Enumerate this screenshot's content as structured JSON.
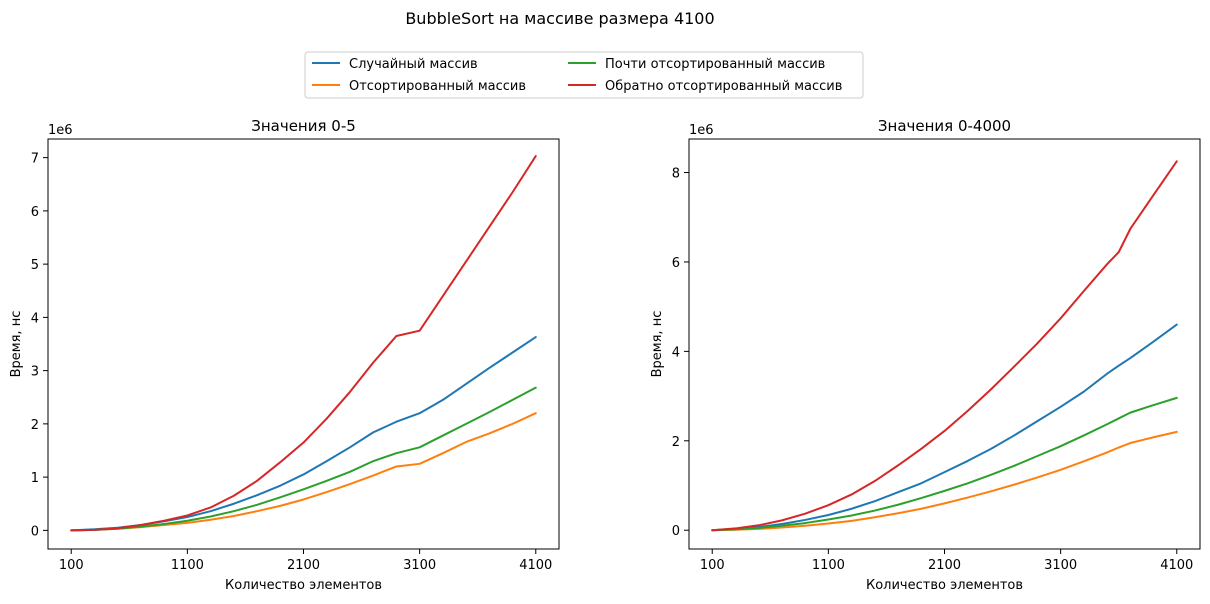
{
  "suptitle": "BubbleSort на массиве размера 4100",
  "legend": [
    {
      "label": "Случайный массив",
      "color": "#1f77b4"
    },
    {
      "label": "Отсортированный массив",
      "color": "#ff7f0e"
    },
    {
      "label": "Почти отсортированный массив",
      "color": "#2ca02c"
    },
    {
      "label": "Обратно отсортированный массив",
      "color": "#d62728"
    }
  ],
  "chart_data": [
    {
      "type": "line",
      "title": "Значения 0-5",
      "xlabel": "Количество элементов",
      "ylabel": "Время, нс",
      "y_offset_label": "1e6",
      "x": [
        100,
        300,
        500,
        700,
        900,
        1100,
        1300,
        1500,
        1700,
        1900,
        2100,
        2300,
        2500,
        2700,
        2900,
        3100,
        3300,
        3500,
        3700,
        3900,
        4100
      ],
      "xticks": [
        100,
        1100,
        2100,
        3100,
        4100
      ],
      "yticks": [
        0,
        1,
        2,
        3,
        4,
        5,
        6,
        7
      ],
      "xlim": [
        -100,
        4300
      ],
      "ylim": [
        -0.35,
        7.35
      ],
      "series": [
        {
          "name": "Случайный массив",
          "color": "#1f77b4",
          "values": [
            0.0,
            0.02,
            0.05,
            0.1,
            0.17,
            0.25,
            0.36,
            0.5,
            0.66,
            0.84,
            1.05,
            1.3,
            1.56,
            1.84,
            2.04,
            2.2,
            2.45,
            2.75,
            3.05,
            3.34,
            3.63
          ]
        },
        {
          "name": "Отсортированный массив",
          "color": "#ff7f0e",
          "values": [
            0.0,
            0.01,
            0.03,
            0.06,
            0.1,
            0.14,
            0.2,
            0.27,
            0.36,
            0.46,
            0.58,
            0.72,
            0.87,
            1.03,
            1.2,
            1.25,
            1.45,
            1.66,
            1.82,
            2.0,
            2.2
          ]
        },
        {
          "name": "Почти отсортированный массив",
          "color": "#2ca02c",
          "values": [
            0.0,
            0.01,
            0.03,
            0.07,
            0.12,
            0.18,
            0.26,
            0.36,
            0.48,
            0.62,
            0.77,
            0.93,
            1.1,
            1.3,
            1.45,
            1.56,
            1.78,
            2.0,
            2.22,
            2.45,
            2.68
          ]
        },
        {
          "name": "Обратно отсортированный массив",
          "color": "#d62728",
          "values": [
            0.0,
            0.01,
            0.04,
            0.1,
            0.18,
            0.28,
            0.43,
            0.65,
            0.93,
            1.28,
            1.65,
            2.1,
            2.6,
            3.15,
            3.65,
            3.75,
            4.4,
            5.05,
            5.7,
            6.35,
            7.03
          ]
        }
      ]
    },
    {
      "type": "line",
      "title": "Значения 0-4000",
      "xlabel": "Количество элементов",
      "ylabel": "Время, нс",
      "y_offset_label": "1e6",
      "x": [
        100,
        300,
        500,
        700,
        900,
        1100,
        1300,
        1500,
        1700,
        1900,
        2100,
        2300,
        2500,
        2700,
        2900,
        3100,
        3300,
        3500,
        3600,
        3700,
        3900,
        4100
      ],
      "xticks": [
        100,
        1100,
        2100,
        3100,
        4100
      ],
      "yticks": [
        0,
        2,
        4,
        6,
        8
      ],
      "xlim": [
        -100,
        4300
      ],
      "ylim": [
        -0.42,
        8.75
      ],
      "series": [
        {
          "name": "Случайный массив",
          "color": "#1f77b4",
          "values": [
            0.0,
            0.03,
            0.07,
            0.14,
            0.23,
            0.34,
            0.48,
            0.65,
            0.85,
            1.05,
            1.3,
            1.55,
            1.82,
            2.12,
            2.44,
            2.76,
            3.1,
            3.5,
            3.68,
            3.85,
            4.22,
            4.6
          ]
        },
        {
          "name": "Отсортированный массив",
          "color": "#ff7f0e",
          "values": [
            0.0,
            0.01,
            0.03,
            0.06,
            0.1,
            0.15,
            0.21,
            0.29,
            0.38,
            0.48,
            0.6,
            0.73,
            0.87,
            1.02,
            1.18,
            1.35,
            1.54,
            1.74,
            1.85,
            1.95,
            2.08,
            2.2
          ]
        },
        {
          "name": "Почти отсортированный массив",
          "color": "#2ca02c",
          "values": [
            0.0,
            0.02,
            0.05,
            0.1,
            0.16,
            0.24,
            0.33,
            0.44,
            0.57,
            0.72,
            0.88,
            1.05,
            1.24,
            1.44,
            1.66,
            1.88,
            2.12,
            2.37,
            2.5,
            2.63,
            2.8,
            2.96
          ]
        },
        {
          "name": "Обратно отсортированный массив",
          "color": "#d62728",
          "values": [
            0.0,
            0.04,
            0.11,
            0.22,
            0.37,
            0.56,
            0.8,
            1.1,
            1.45,
            1.82,
            2.22,
            2.67,
            3.15,
            3.66,
            4.18,
            4.74,
            5.35,
            5.95,
            6.22,
            6.74,
            7.5,
            8.25
          ]
        }
      ]
    }
  ]
}
